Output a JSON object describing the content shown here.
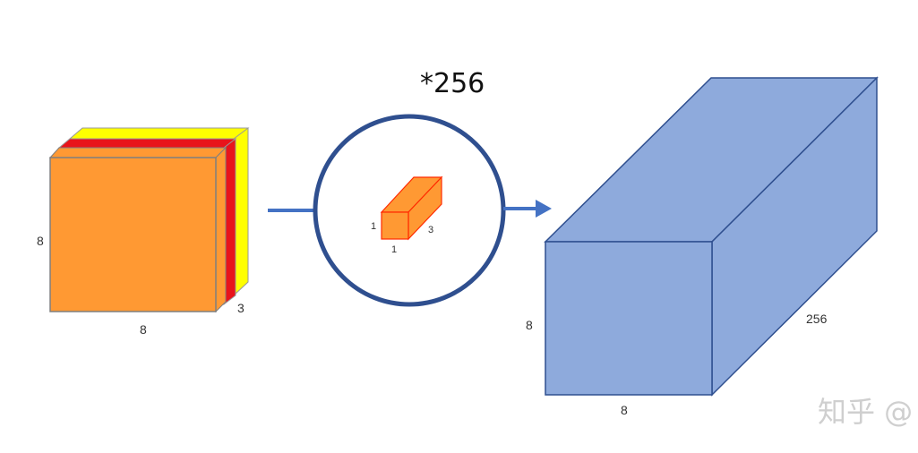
{
  "multiplier_label": "*256",
  "input_volume": {
    "width_label": "8",
    "height_label": "8",
    "depth_label": "3",
    "channel_colors": [
      "#ff9933",
      "#e8141b",
      "#ffff00"
    ]
  },
  "kernel": {
    "height_label": "1",
    "width_label": "1",
    "depth_label": "3",
    "color": "#ff9933",
    "edge_color": "#ff2a00"
  },
  "output_volume": {
    "height_label": "8",
    "width_label": "8",
    "depth_label": "256",
    "color": "#8eaadc",
    "edge_color": "#2f4f8f"
  },
  "colors": {
    "arrow": "#4472c4",
    "circle": "#2f4f8f"
  },
  "watermark": "知乎 @"
}
